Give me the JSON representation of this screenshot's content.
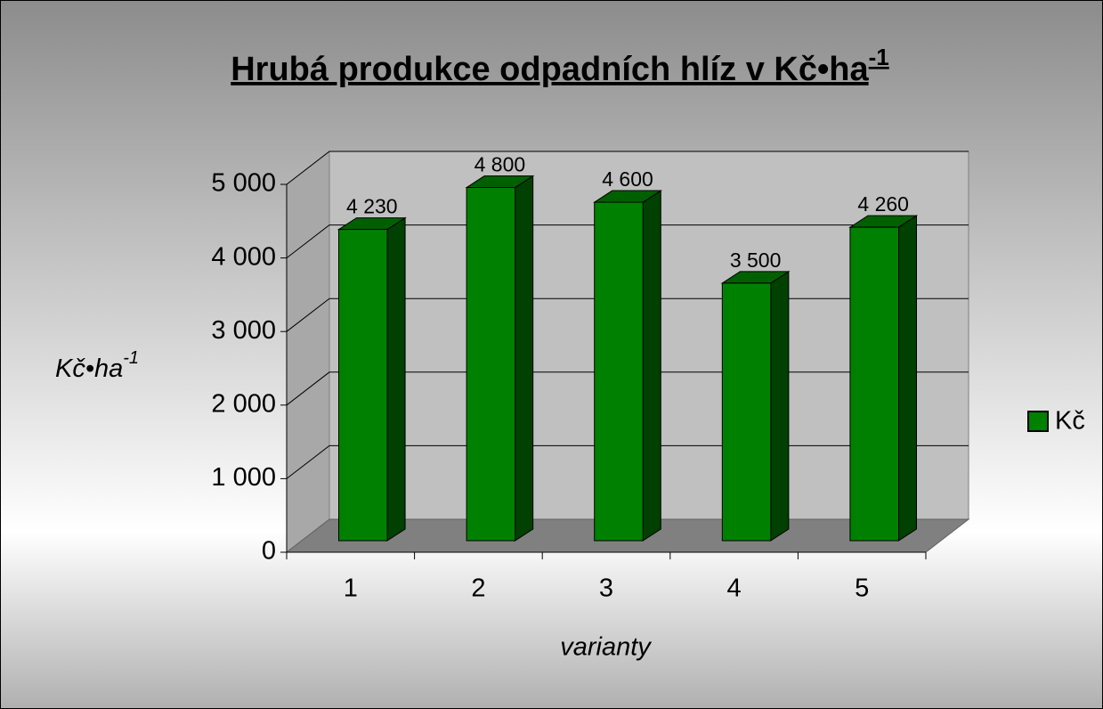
{
  "chart_data": {
    "type": "bar3d",
    "title": "Hrubá produkce odpadních hlíz v Kč•ha",
    "title_superscript": "-1",
    "y_label": "Kč•ha",
    "y_label_superscript": "-1",
    "x_label": "varianty",
    "categories": [
      "1",
      "2",
      "3",
      "4",
      "5"
    ],
    "series": [
      {
        "name": "Kč",
        "color": "#008000",
        "values": [
          4230,
          4800,
          4600,
          3500,
          4260
        ],
        "value_labels": [
          "4 230",
          "4 800",
          "4 600",
          "3 500",
          "4 260"
        ]
      }
    ],
    "ylim": [
      0,
      5000
    ],
    "yticks": [
      0,
      {
        "value": 1000,
        "label": "1 000"
      },
      {
        "value": 2000,
        "label": "2 000"
      },
      {
        "value": 3000,
        "label": "3 000"
      },
      {
        "value": 4000,
        "label": "4 000"
      },
      {
        "value": 5000,
        "label": "5 000"
      }
    ],
    "grid": true,
    "legend": "right"
  }
}
